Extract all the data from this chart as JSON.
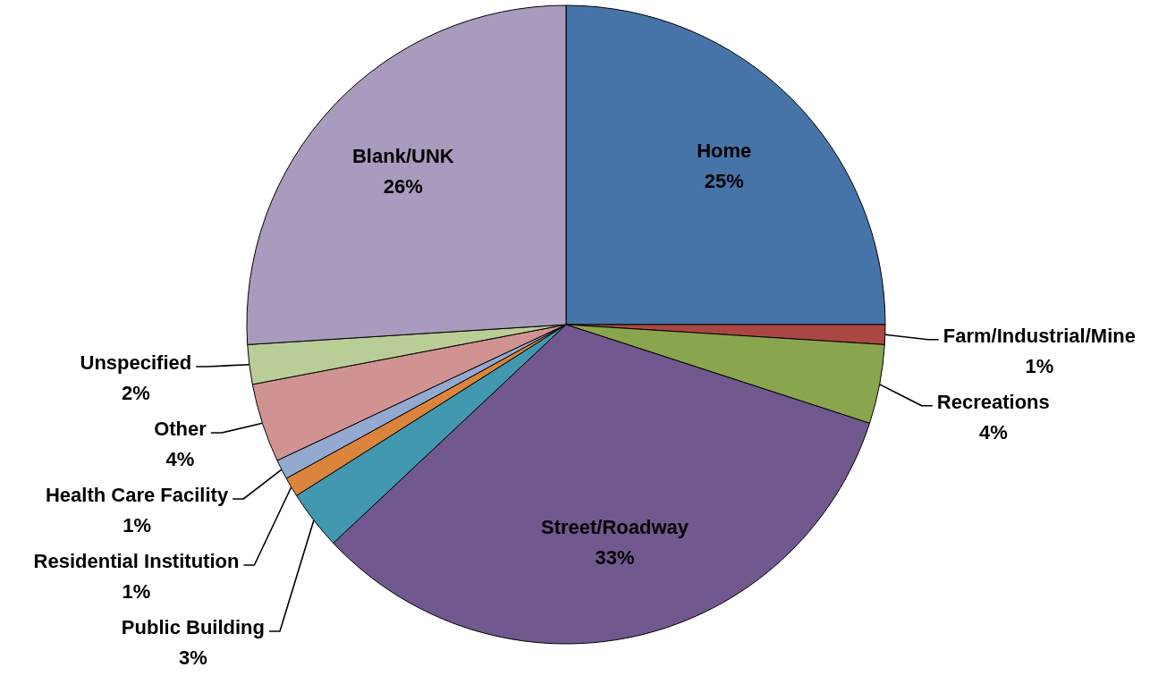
{
  "chart_data": {
    "type": "pie",
    "categories": [
      "Home",
      "Farm/Industrial/Mine",
      "Recreations",
      "Street/Roadway",
      "Public Building",
      "Residential Institution",
      "Health Care Facility",
      "Other",
      "Unspecified",
      "Blank/UNK"
    ],
    "values": [
      25,
      1,
      4,
      33,
      3,
      1,
      1,
      4,
      2,
      26
    ],
    "value_labels": [
      "25%",
      "1%",
      "4%",
      "33%",
      "3%",
      "1%",
      "1%",
      "4%",
      "2%",
      "26%"
    ],
    "colors": [
      "#4674a9",
      "#aa4744",
      "#89a54e",
      "#71588f",
      "#4198af",
      "#db843d",
      "#93a9cf",
      "#d19392",
      "#b9cd96",
      "#a99bbd"
    ]
  }
}
